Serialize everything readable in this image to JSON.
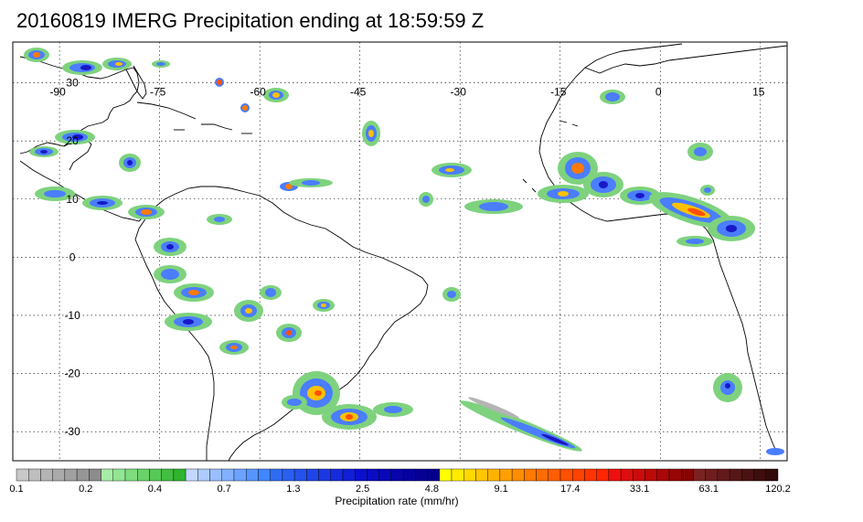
{
  "title": "20160819 IMERG Precipitation ending at 18:59:59 Z",
  "map": {
    "lon_range": [
      -97,
      19
    ],
    "lat_range": [
      -35,
      37
    ],
    "lon_ticks": [
      {
        "value": -90,
        "label": "-90"
      },
      {
        "value": -75,
        "label": "-75"
      },
      {
        "value": -60,
        "label": "-60"
      },
      {
        "value": -45,
        "label": "-45"
      },
      {
        "value": -30,
        "label": "-30"
      },
      {
        "value": -15,
        "label": "-15"
      },
      {
        "value": 0,
        "label": "0"
      },
      {
        "value": 15,
        "label": "15"
      }
    ],
    "lat_ticks": [
      {
        "value": 30,
        "label": "30"
      },
      {
        "value": 20,
        "label": "20"
      },
      {
        "value": 10,
        "label": "10"
      },
      {
        "value": 0,
        "label": "0"
      },
      {
        "value": -10,
        "label": "-10"
      },
      {
        "value": -20,
        "label": "-20"
      },
      {
        "value": -30,
        "label": "-30"
      }
    ],
    "grid": "dotted",
    "coastline_color": "#000000"
  },
  "colorbar": {
    "title": "Precipitation rate (mm/hr)",
    "tick_labels": [
      "0.1",
      "0.2",
      "0.4",
      "0.7",
      "1.3",
      "2.5",
      "4.8",
      "9.1",
      "17.4",
      "33.1",
      "63.1",
      "120.2"
    ],
    "colors": [
      "#c8c8c8",
      "#bebebe",
      "#b4b4b4",
      "#aaaaaa",
      "#a0a0a0",
      "#969696",
      "#8c8c8c",
      "#a6eca6",
      "#92e692",
      "#7edc7e",
      "#6ad26a",
      "#56c856",
      "#42be42",
      "#2eb42e",
      "#c4d8ff",
      "#aecbff",
      "#98beff",
      "#82b0ff",
      "#6ca2ff",
      "#5694ff",
      "#4086ff",
      "#2f6cf5",
      "#2a5ff0",
      "#2552eb",
      "#2045e6",
      "#1b38e1",
      "#162bdc",
      "#111ed7",
      "#0b10d0",
      "#0a0cc4",
      "#0908b8",
      "#0804ac",
      "#0700a0",
      "#060096",
      "#05008c",
      "#ffff00",
      "#ffec00",
      "#ffd900",
      "#ffc600",
      "#ffb300",
      "#ffa000",
      "#ff8d00",
      "#ff7a00",
      "#ff6c00",
      "#ff5e00",
      "#ff5000",
      "#ff4200",
      "#ff3400",
      "#ff2600",
      "#ee1010",
      "#dd0e0e",
      "#cc0c0c",
      "#bb0a0a",
      "#aa0808",
      "#990606",
      "#880404",
      "#7a2222",
      "#6e1e1e",
      "#621a1a",
      "#561616",
      "#4a1212",
      "#3e0e0e",
      "#320a0a"
    ]
  },
  "precip_colors": {
    "light": "#7ed27e",
    "moderate": "#4a7dff",
    "heavy": "#1818c8",
    "very_heavy": "#ffc000",
    "extreme": "#ff5000",
    "trace": "#b4b4b4"
  }
}
